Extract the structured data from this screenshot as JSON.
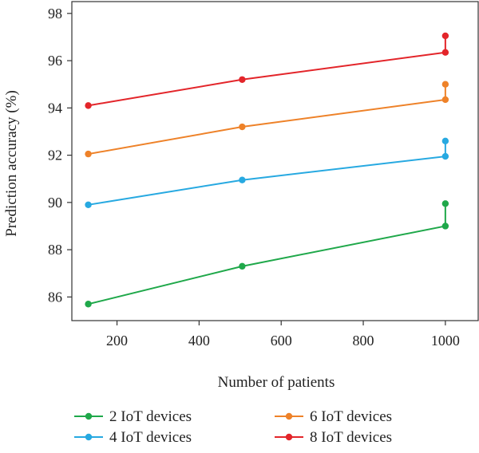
{
  "chart_data": {
    "type": "line",
    "title": "",
    "xlabel": "Number of patients",
    "ylabel": "Prediction accuracy (%)",
    "xlim": [
      90,
      1080
    ],
    "ylim": [
      85,
      98.5
    ],
    "xticks": [
      200,
      400,
      600,
      800,
      1000
    ],
    "yticks": [
      86,
      88,
      90,
      92,
      94,
      96,
      98
    ],
    "grid": false,
    "legend_position": "bottom",
    "series": [
      {
        "name": "2 IoT devices",
        "color": "#1fa84a",
        "points": [
          {
            "x": 130,
            "y": 85.7
          },
          {
            "x": 505,
            "y": 87.3
          },
          {
            "x": 1000,
            "y": 89.0
          },
          {
            "x": 1000,
            "y": 89.95
          }
        ]
      },
      {
        "name": "4 IoT devices",
        "color": "#27a9e1",
        "points": [
          {
            "x": 130,
            "y": 89.9
          },
          {
            "x": 505,
            "y": 90.95
          },
          {
            "x": 1000,
            "y": 91.95
          },
          {
            "x": 1000,
            "y": 92.6
          }
        ]
      },
      {
        "name": "6 IoT devices",
        "color": "#ee8229",
        "points": [
          {
            "x": 130,
            "y": 92.05
          },
          {
            "x": 505,
            "y": 93.2
          },
          {
            "x": 1000,
            "y": 94.35
          },
          {
            "x": 1000,
            "y": 95.0
          }
        ]
      },
      {
        "name": "8 IoT devices",
        "color": "#e3252a",
        "points": [
          {
            "x": 130,
            "y": 94.1
          },
          {
            "x": 505,
            "y": 95.2
          },
          {
            "x": 1000,
            "y": 96.35
          },
          {
            "x": 1000,
            "y": 97.05
          }
        ]
      }
    ]
  }
}
